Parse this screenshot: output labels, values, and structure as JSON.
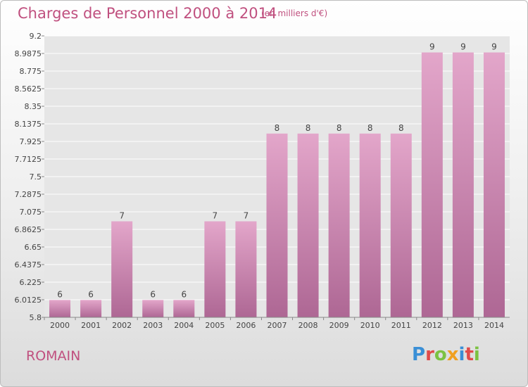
{
  "header": {
    "title": "Charges de Personnel 2000 à 2014",
    "subtitle": "(en milliers d'€)"
  },
  "footer": {
    "commune": "ROMAIN",
    "logo_text": "Proxiti"
  },
  "colors": {
    "title": "#c0507f",
    "bar_top": "#e3a6ca",
    "bar_bottom": "#ae6794",
    "plot_bg": "#e6e6e6"
  },
  "chart_data": {
    "type": "bar",
    "title": "Charges de Personnel 2000 à 2014",
    "subtitle": "(en milliers d'€)",
    "xlabel": "",
    "ylabel": "",
    "categories": [
      "2000",
      "2001",
      "2002",
      "2003",
      "2004",
      "2005",
      "2006",
      "2007",
      "2008",
      "2009",
      "2010",
      "2011",
      "2012",
      "2013",
      "2014"
    ],
    "values": [
      6,
      6,
      7,
      6,
      6,
      7,
      7,
      8,
      8,
      8,
      8,
      8,
      9,
      9,
      9
    ],
    "plotted_values": [
      6.01,
      6.01,
      6.96,
      6.01,
      6.01,
      6.96,
      6.96,
      8.02,
      8.02,
      8.02,
      8.02,
      8.02,
      9.0,
      9.0,
      9.0
    ],
    "data_labels": [
      "6",
      "6",
      "7",
      "6",
      "6",
      "7",
      "7",
      "8",
      "8",
      "8",
      "8",
      "8",
      "9",
      "9",
      "9"
    ],
    "yticks": [
      "5.8",
      "6.0125",
      "6.225",
      "6.4375",
      "6.65",
      "6.8625",
      "7.075",
      "7.2875",
      "7.5",
      "7.7125",
      "7.925",
      "8.1375",
      "8.35",
      "8.5625",
      "8.775",
      "8.9875",
      "9.2"
    ],
    "ylim": [
      5.8,
      9.2
    ],
    "grid": true,
    "legend": "none"
  }
}
